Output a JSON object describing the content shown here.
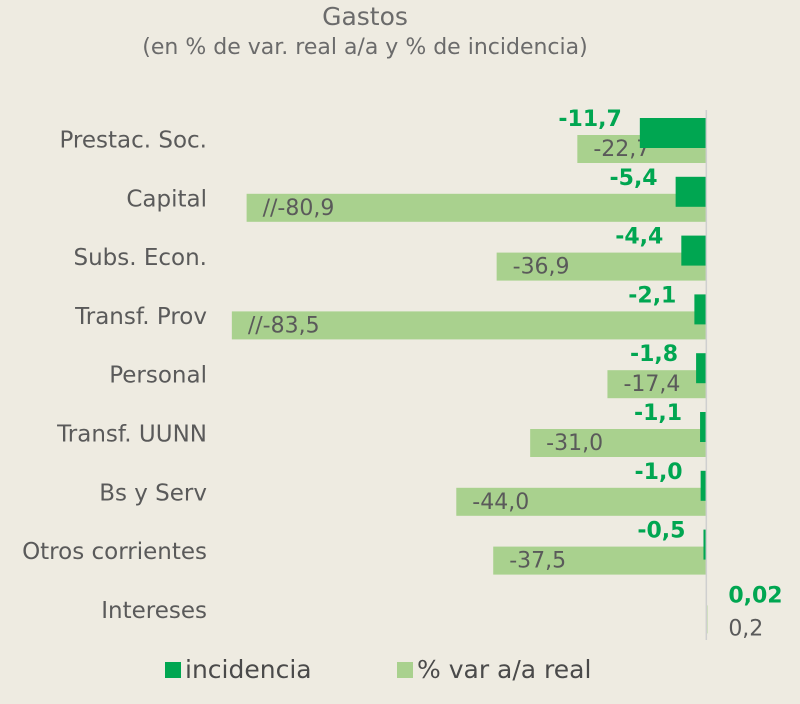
{
  "chart_data": {
    "type": "bar",
    "orientation": "horizontal",
    "title": "Gastos",
    "subtitle": "(en % de var. real a/a y % de incidencia)",
    "categories": [
      "Prestac. Soc.",
      "Capital",
      "Subs. Econ.",
      "Transf. Prov",
      "Personal",
      "Transf. UUNN",
      "Bs y Serv",
      "Otros corrientes",
      "Intereses"
    ],
    "series": [
      {
        "name": "incidencia",
        "color": "#00a651",
        "values": [
          -11.7,
          -5.4,
          -4.4,
          -2.1,
          -1.8,
          -1.1,
          -1.0,
          -0.5,
          0.02
        ],
        "value_labels": [
          "-11,7",
          "-5,4",
          "-4,4",
          "-2,1",
          "-1,8",
          "-1,1",
          "-1,0",
          "-0,5",
          "0,02"
        ]
      },
      {
        "name": "% var a/a real",
        "color": "#a9d18e",
        "values": [
          -22.7,
          -80.9,
          -36.9,
          -83.5,
          -17.4,
          -31.0,
          -44.0,
          -37.5,
          0.2
        ],
        "value_labels": [
          "-22,7",
          "//-80,9",
          "-36,9",
          "//-83,5",
          "-17,4",
          "-31,0",
          "-44,0",
          "-37,5",
          "0,2"
        ]
      }
    ],
    "xlim": [
      -84,
      1
    ],
    "legend": "bottom"
  }
}
